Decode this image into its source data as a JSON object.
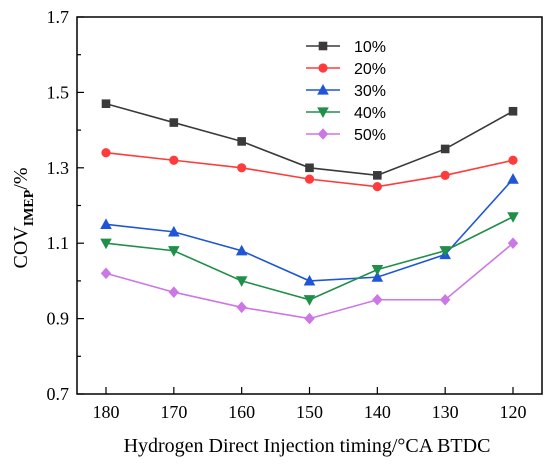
{
  "chart_data": {
    "type": "line",
    "title": "",
    "xlabel": "Hydrogen Direct Injection timing/°CA BTDC",
    "ylabel": "COV",
    "ylabel_sub": "IMEP",
    "ylabel_suffix": "/%",
    "x": [
      180,
      170,
      160,
      150,
      140,
      130,
      120
    ],
    "x_tick_labels": [
      "180",
      "170",
      "160",
      "150",
      "140",
      "130",
      "120"
    ],
    "x_reversed": true,
    "ylim": [
      0.7,
      1.7
    ],
    "y_ticks": [
      0.7,
      0.9,
      1.1,
      1.3,
      1.5,
      1.7
    ],
    "y_tick_labels": [
      "0.7",
      "0.9",
      "1.1",
      "1.3",
      "1.5",
      "1.7"
    ],
    "grid": false,
    "legend_position": "top-right",
    "series": [
      {
        "name": "10%",
        "color": "#3a3a3a",
        "marker": "square",
        "values": [
          1.47,
          1.42,
          1.37,
          1.3,
          1.28,
          1.35,
          1.45
        ]
      },
      {
        "name": "20%",
        "color": "#ff3b3b",
        "marker": "circle",
        "values": [
          1.34,
          1.32,
          1.3,
          1.27,
          1.25,
          1.28,
          1.32
        ]
      },
      {
        "name": "30%",
        "color": "#1f56d6",
        "marker": "triangle-up",
        "values": [
          1.15,
          1.13,
          1.08,
          1.0,
          1.01,
          1.07,
          1.27
        ]
      },
      {
        "name": "40%",
        "color": "#1f8f4a",
        "marker": "triangle-down",
        "values": [
          1.1,
          1.08,
          1.0,
          0.95,
          1.03,
          1.08,
          1.17
        ]
      },
      {
        "name": "50%",
        "color": "#cc77e6",
        "marker": "diamond",
        "values": [
          1.02,
          0.97,
          0.93,
          0.9,
          0.95,
          0.95,
          1.1
        ]
      }
    ]
  }
}
